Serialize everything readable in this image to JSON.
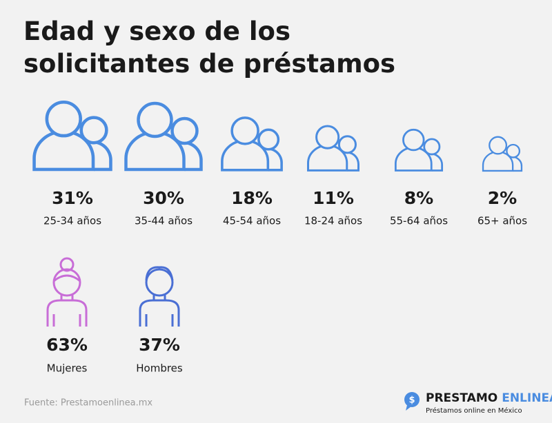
{
  "title": "Edad y sexo de los solicitantes de préstamos",
  "chart_data": [
    {
      "type": "pictogram",
      "color": "#4a8ce0",
      "categories": [
        "25-34 años",
        "35-44 años",
        "45-54 años",
        "18-24 años",
        "55-64 años",
        "65+ años"
      ],
      "values": [
        31,
        30,
        18,
        11,
        8,
        2
      ],
      "value_labels": [
        "31%",
        "30%",
        "18%",
        "11%",
        "8%",
        "2%"
      ]
    },
    {
      "type": "gender",
      "categories": [
        "Mujeres",
        "Hombres"
      ],
      "values": [
        63,
        37
      ],
      "value_labels": [
        "63%",
        "37%"
      ],
      "colors": [
        "#c86dd7",
        "#4a6fd4"
      ]
    }
  ],
  "source": "Fuente: Prestamoenlinea.mx",
  "brand": {
    "name_1": "PRESTAMO",
    "name_2": "ENLINEA",
    "tagline": "Préstamos online en México"
  }
}
